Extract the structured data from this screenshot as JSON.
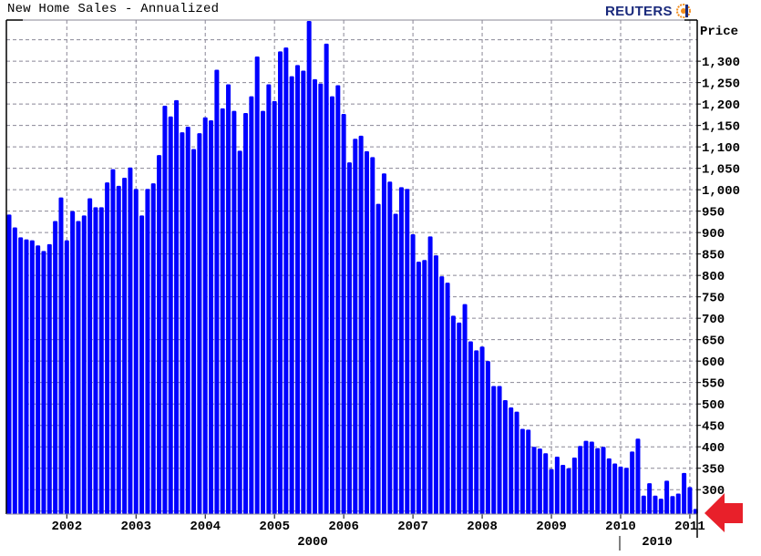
{
  "header": {
    "title": "New Home Sales - Annualized",
    "logo_text": "REUTERS"
  },
  "colors": {
    "bar": "#0000ff",
    "grid": "#8a8796",
    "arrow": "#e8202a",
    "logo": "#1a2a7c",
    "logo_globe": "#f28c1c"
  },
  "chart_data": {
    "type": "bar",
    "title": "New Home Sales - Annualized",
    "ylabel": "Price",
    "y_axis_side": "right",
    "ylim": [
      243,
      1396
    ],
    "grid": true,
    "x_start_month": "2001-03",
    "x_end_month": "2011-02",
    "values": [
      942,
      912,
      889,
      884,
      882,
      870,
      857,
      873,
      927,
      982,
      882,
      950,
      927,
      940,
      980,
      959,
      959,
      1017,
      1048,
      1009,
      1028,
      1052,
      1002,
      940,
      1002,
      1015,
      1081,
      1196,
      1171,
      1209,
      1134,
      1147,
      1095,
      1132,
      1169,
      1162,
      1280,
      1190,
      1246,
      1184,
      1091,
      1179,
      1218,
      1311,
      1184,
      1246,
      1207,
      1323,
      1332,
      1265,
      1291,
      1278,
      1394,
      1258,
      1248,
      1341,
      1218,
      1244,
      1177,
      1064,
      1119,
      1126,
      1090,
      1076,
      967,
      1038,
      1019,
      944,
      1006,
      1002,
      896,
      832,
      836,
      891,
      847,
      798,
      783,
      706,
      690,
      733,
      646,
      625,
      634,
      600,
      542,
      542,
      509,
      492,
      482,
      442,
      440,
      400,
      396,
      385,
      348,
      377,
      358,
      350,
      375,
      402,
      414,
      412,
      397,
      400,
      373,
      361,
      354,
      351,
      389,
      419,
      286,
      315,
      286,
      279,
      321,
      285,
      291,
      339,
      306,
      255
    ],
    "y_ticks": [
      {
        "value": 300,
        "label": "300"
      },
      {
        "value": 350,
        "label": "350"
      },
      {
        "value": 400,
        "label": "400"
      },
      {
        "value": 450,
        "label": "450"
      },
      {
        "value": 500,
        "label": "500"
      },
      {
        "value": 550,
        "label": "550"
      },
      {
        "value": 600,
        "label": "600"
      },
      {
        "value": 650,
        "label": "650"
      },
      {
        "value": 700,
        "label": "700"
      },
      {
        "value": 750,
        "label": "750"
      },
      {
        "value": 800,
        "label": "800"
      },
      {
        "value": 850,
        "label": "850"
      },
      {
        "value": 900,
        "label": "900"
      },
      {
        "value": 950,
        "label": "950"
      },
      {
        "value": 1000,
        "label": "1,000"
      },
      {
        "value": 1050,
        "label": "1,050"
      },
      {
        "value": 1100,
        "label": "1,100"
      },
      {
        "value": 1150,
        "label": "1,150"
      },
      {
        "value": 1200,
        "label": "1,200"
      },
      {
        "value": 1250,
        "label": "1,250"
      },
      {
        "value": 1300,
        "label": "1,300"
      }
    ],
    "x_ticks": [
      "2002",
      "2003",
      "2004",
      "2005",
      "2006",
      "2007",
      "2008",
      "2009",
      "2010",
      "2011"
    ],
    "x_secondary_labels": [
      "2000",
      "2010"
    ]
  }
}
